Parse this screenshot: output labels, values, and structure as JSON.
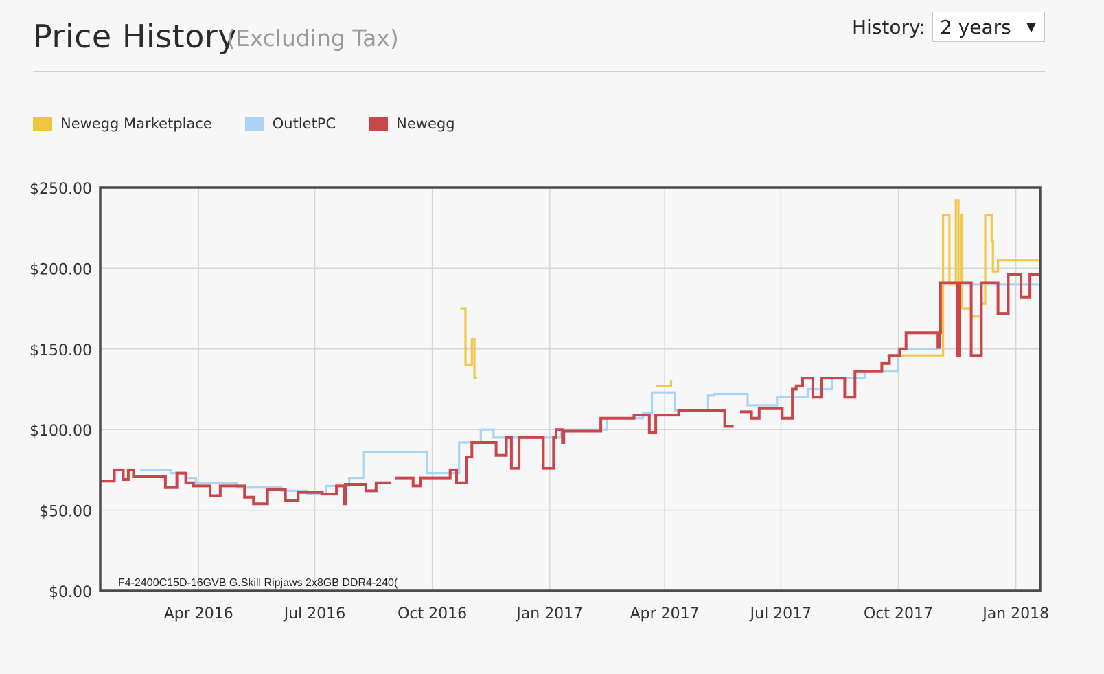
{
  "header": {
    "title": "Price History",
    "subtitle": "(Excluding Tax)",
    "history_label": "History:",
    "history_value": "2 years"
  },
  "colors": {
    "newegg_marketplace": "#f0c43e",
    "outletpc": "#a9d4f5",
    "newegg": "#c9464a",
    "grid": "#d6d6d6",
    "frame": "#4a4a4a"
  },
  "chart_data": {
    "type": "line",
    "step": true,
    "annotation": "F4-2400C15D-16GVB G.Skill Ripjaws 2x8GB DDR4-240(",
    "ylim": [
      0,
      250
    ],
    "yticks": [
      "$0.00",
      "$50.00",
      "$100.00",
      "$150.00",
      "$200.00",
      "$250.00"
    ],
    "ytick_values": [
      0,
      50,
      100,
      150,
      200,
      250
    ],
    "xlim": [
      "2016-01-15",
      "2018-01-20"
    ],
    "xticks": [
      {
        "label": "Apr 2016",
        "date": "2016-04-01"
      },
      {
        "label": "Jul 2016",
        "date": "2016-07-01"
      },
      {
        "label": "Oct 2016",
        "date": "2016-10-01"
      },
      {
        "label": "Jan 2017",
        "date": "2017-01-01"
      },
      {
        "label": "Apr 2017",
        "date": "2017-04-01"
      },
      {
        "label": "Jul 2017",
        "date": "2017-07-01"
      },
      {
        "label": "Oct 2017",
        "date": "2017-10-01"
      },
      {
        "label": "Jan 2018",
        "date": "2018-01-01"
      }
    ],
    "grid": true,
    "legend_position": "top-left",
    "series": [
      {
        "name": "Newegg Marketplace",
        "color": "#f0c43e",
        "segments": [
          [
            [
              "2016-10-23",
              175
            ],
            [
              "2016-10-27",
              175
            ],
            [
              "2016-10-27",
              140
            ],
            [
              "2016-11-01",
              140
            ],
            [
              "2016-11-01",
              156
            ],
            [
              "2016-11-03",
              156
            ],
            [
              "2016-11-03",
              132
            ],
            [
              "2016-11-05",
              132
            ]
          ],
          [
            [
              "2017-03-25",
              127
            ],
            [
              "2017-04-06",
              127
            ],
            [
              "2017-04-06",
              130
            ],
            [
              "2017-04-07",
              130
            ]
          ],
          [
            [
              "2017-09-22",
              146
            ],
            [
              "2017-11-05",
              146
            ],
            [
              "2017-11-05",
              233
            ],
            [
              "2017-11-10",
              233
            ],
            [
              "2017-11-10",
              190
            ],
            [
              "2017-11-15",
              190
            ],
            [
              "2017-11-15",
              242
            ],
            [
              "2017-11-17",
              242
            ],
            [
              "2017-11-17",
              190
            ],
            [
              "2017-11-19",
              190
            ],
            [
              "2017-11-19",
              233
            ],
            [
              "2017-11-20",
              233
            ],
            [
              "2017-11-20",
              175
            ],
            [
              "2017-11-27",
              175
            ],
            [
              "2017-11-27",
              170
            ],
            [
              "2017-12-05",
              170
            ],
            [
              "2017-12-05",
              178
            ],
            [
              "2017-12-08",
              178
            ],
            [
              "2017-12-08",
              233
            ],
            [
              "2017-12-13",
              233
            ],
            [
              "2017-12-13",
              217
            ],
            [
              "2017-12-14",
              217
            ],
            [
              "2017-12-14",
              198
            ],
            [
              "2017-12-18",
              198
            ],
            [
              "2017-12-18",
              205
            ],
            [
              "2018-01-20",
              205
            ]
          ]
        ]
      },
      {
        "name": "OutletPC",
        "color": "#a9d4f5",
        "segments": [
          [
            [
              "2016-02-15",
              75
            ],
            [
              "2016-03-10",
              75
            ],
            [
              "2016-03-10",
              73
            ],
            [
              "2016-03-22",
              73
            ],
            [
              "2016-03-22",
              70
            ],
            [
              "2016-03-30",
              70
            ],
            [
              "2016-03-30",
              67
            ],
            [
              "2016-05-01",
              67
            ],
            [
              "2016-05-01",
              64
            ],
            [
              "2016-06-05",
              64
            ],
            [
              "2016-06-05",
              62
            ],
            [
              "2016-06-25",
              62
            ],
            [
              "2016-06-25",
              60
            ],
            [
              "2016-07-10",
              60
            ],
            [
              "2016-07-10",
              65
            ],
            [
              "2016-07-28",
              65
            ],
            [
              "2016-07-28",
              70
            ],
            [
              "2016-08-08",
              70
            ],
            [
              "2016-08-08",
              86
            ],
            [
              "2016-09-27",
              86
            ],
            [
              "2016-09-27",
              73
            ],
            [
              "2016-10-22",
              73
            ],
            [
              "2016-10-22",
              92
            ],
            [
              "2016-11-08",
              92
            ],
            [
              "2016-11-08",
              100
            ],
            [
              "2016-11-18",
              100
            ],
            [
              "2016-11-18",
              95
            ],
            [
              "2017-01-10",
              95
            ],
            [
              "2017-01-10",
              100
            ],
            [
              "2017-02-15",
              100
            ],
            [
              "2017-02-15",
              107
            ],
            [
              "2017-03-15",
              107
            ],
            [
              "2017-03-15",
              110
            ],
            [
              "2017-03-22",
              110
            ],
            [
              "2017-03-22",
              123
            ],
            [
              "2017-04-09",
              123
            ],
            [
              "2017-04-09",
              112
            ],
            [
              "2017-05-05",
              112
            ],
            [
              "2017-05-05",
              121
            ],
            [
              "2017-05-10",
              121
            ],
            [
              "2017-05-10",
              122
            ],
            [
              "2017-06-05",
              122
            ],
            [
              "2017-06-05",
              115
            ],
            [
              "2017-06-28",
              115
            ],
            [
              "2017-06-28",
              120
            ],
            [
              "2017-07-22",
              120
            ],
            [
              "2017-07-22",
              125
            ],
            [
              "2017-08-10",
              125
            ],
            [
              "2017-08-10",
              132
            ],
            [
              "2017-09-05",
              132
            ],
            [
              "2017-09-05",
              136
            ],
            [
              "2017-10-01",
              136
            ],
            [
              "2017-10-01",
              150
            ],
            [
              "2017-11-01",
              150
            ],
            [
              "2017-11-01",
              160
            ],
            [
              "2017-11-03",
              160
            ],
            [
              "2017-11-03",
              190
            ],
            [
              "2018-01-20",
              190
            ]
          ]
        ]
      },
      {
        "name": "Newegg",
        "color": "#c9464a",
        "segments": [
          [
            [
              "2016-01-15",
              68
            ],
            [
              "2016-01-26",
              68
            ],
            [
              "2016-01-26",
              75
            ],
            [
              "2016-02-02",
              75
            ],
            [
              "2016-02-02",
              69
            ],
            [
              "2016-02-06",
              69
            ],
            [
              "2016-02-06",
              75
            ],
            [
              "2016-02-10",
              75
            ],
            [
              "2016-02-10",
              71
            ],
            [
              "2016-03-06",
              71
            ],
            [
              "2016-03-06",
              64
            ],
            [
              "2016-03-15",
              64
            ],
            [
              "2016-03-15",
              73
            ],
            [
              "2016-03-22",
              73
            ],
            [
              "2016-03-22",
              67
            ],
            [
              "2016-03-28",
              67
            ],
            [
              "2016-03-28",
              65
            ],
            [
              "2016-04-10",
              65
            ],
            [
              "2016-04-10",
              59
            ],
            [
              "2016-04-18",
              59
            ],
            [
              "2016-04-18",
              65
            ],
            [
              "2016-05-07",
              65
            ],
            [
              "2016-05-07",
              58
            ],
            [
              "2016-05-14",
              58
            ],
            [
              "2016-05-14",
              54
            ],
            [
              "2016-05-25",
              54
            ],
            [
              "2016-05-25",
              63
            ],
            [
              "2016-06-08",
              63
            ],
            [
              "2016-06-08",
              56
            ],
            [
              "2016-06-18",
              56
            ],
            [
              "2016-06-18",
              61
            ],
            [
              "2016-07-07",
              61
            ],
            [
              "2016-07-07",
              60
            ],
            [
              "2016-07-18",
              60
            ],
            [
              "2016-07-18",
              65
            ],
            [
              "2016-07-24",
              65
            ],
            [
              "2016-07-24",
              54
            ],
            [
              "2016-07-25",
              54
            ],
            [
              "2016-07-25",
              66
            ],
            [
              "2016-08-10",
              66
            ],
            [
              "2016-08-10",
              62
            ],
            [
              "2016-08-18",
              62
            ],
            [
              "2016-08-18",
              67
            ],
            [
              "2016-08-30",
              67
            ]
          ],
          [
            [
              "2016-09-02",
              70
            ],
            [
              "2016-09-16",
              70
            ],
            [
              "2016-09-16",
              65
            ],
            [
              "2016-09-22",
              65
            ],
            [
              "2016-09-22",
              70
            ],
            [
              "2016-10-15",
              70
            ],
            [
              "2016-10-15",
              75
            ],
            [
              "2016-10-20",
              75
            ],
            [
              "2016-10-20",
              67
            ],
            [
              "2016-10-28",
              67
            ],
            [
              "2016-10-28",
              83
            ],
            [
              "2016-11-01",
              83
            ],
            [
              "2016-11-01",
              92
            ],
            [
              "2016-11-20",
              92
            ],
            [
              "2016-11-20",
              84
            ],
            [
              "2016-11-28",
              84
            ],
            [
              "2016-11-28",
              95
            ],
            [
              "2016-12-02",
              95
            ],
            [
              "2016-12-02",
              76
            ],
            [
              "2016-12-08",
              76
            ],
            [
              "2016-12-08",
              95
            ],
            [
              "2016-12-27",
              95
            ],
            [
              "2016-12-27",
              76
            ],
            [
              "2017-01-04",
              76
            ],
            [
              "2017-01-04",
              95
            ],
            [
              "2017-01-06",
              95
            ],
            [
              "2017-01-06",
              100
            ],
            [
              "2017-01-11",
              100
            ],
            [
              "2017-01-11",
              92
            ],
            [
              "2017-01-12",
              92
            ],
            [
              "2017-01-12",
              99
            ],
            [
              "2017-02-10",
              99
            ],
            [
              "2017-02-10",
              107
            ],
            [
              "2017-03-08",
              107
            ],
            [
              "2017-03-08",
              109
            ],
            [
              "2017-03-20",
              109
            ],
            [
              "2017-03-20",
              98
            ],
            [
              "2017-03-25",
              98
            ],
            [
              "2017-03-25",
              109
            ],
            [
              "2017-04-12",
              109
            ],
            [
              "2017-04-12",
              112
            ],
            [
              "2017-05-18",
              112
            ],
            [
              "2017-05-18",
              102
            ],
            [
              "2017-05-25",
              102
            ]
          ],
          [
            [
              "2017-05-30",
              111
            ],
            [
              "2017-06-08",
              111
            ],
            [
              "2017-06-08",
              107
            ],
            [
              "2017-06-14",
              107
            ],
            [
              "2017-06-14",
              113
            ],
            [
              "2017-07-02",
              113
            ],
            [
              "2017-07-02",
              107
            ],
            [
              "2017-07-10",
              107
            ],
            [
              "2017-07-10",
              125
            ],
            [
              "2017-07-13",
              125
            ],
            [
              "2017-07-13",
              127
            ],
            [
              "2017-07-18",
              127
            ],
            [
              "2017-07-18",
              132
            ],
            [
              "2017-07-26",
              132
            ],
            [
              "2017-07-26",
              120
            ],
            [
              "2017-08-02",
              120
            ],
            [
              "2017-08-02",
              132
            ],
            [
              "2017-08-20",
              132
            ],
            [
              "2017-08-20",
              120
            ],
            [
              "2017-08-28",
              120
            ],
            [
              "2017-08-28",
              136
            ],
            [
              "2017-09-18",
              136
            ],
            [
              "2017-09-18",
              141
            ],
            [
              "2017-09-24",
              141
            ],
            [
              "2017-09-24",
              146
            ],
            [
              "2017-10-02",
              146
            ],
            [
              "2017-10-02",
              150
            ],
            [
              "2017-10-07",
              150
            ],
            [
              "2017-10-07",
              160
            ],
            [
              "2017-11-01",
              160
            ],
            [
              "2017-11-01",
              151
            ],
            [
              "2017-11-02",
              151
            ],
            [
              "2017-11-02",
              160
            ],
            [
              "2017-11-03",
              160
            ],
            [
              "2017-11-03",
              191
            ],
            [
              "2017-11-16",
              191
            ],
            [
              "2017-11-16",
              146
            ],
            [
              "2017-11-18",
              146
            ],
            [
              "2017-11-18",
              191
            ],
            [
              "2017-11-27",
              191
            ],
            [
              "2017-11-27",
              146
            ],
            [
              "2017-12-05",
              146
            ],
            [
              "2017-12-05",
              191
            ],
            [
              "2017-12-18",
              191
            ],
            [
              "2017-12-18",
              172
            ],
            [
              "2017-12-26",
              172
            ],
            [
              "2017-12-26",
              196
            ],
            [
              "2018-01-05",
              196
            ],
            [
              "2018-01-05",
              182
            ],
            [
              "2018-01-12",
              182
            ],
            [
              "2018-01-12",
              196
            ],
            [
              "2018-01-20",
              196
            ]
          ]
        ]
      }
    ]
  }
}
